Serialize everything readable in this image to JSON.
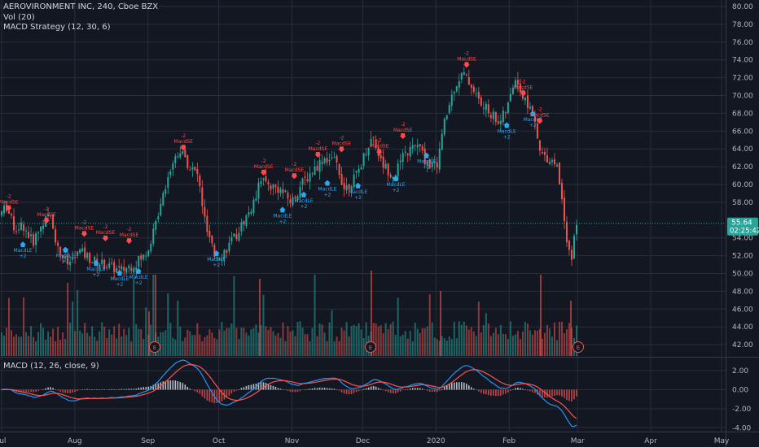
{
  "legend": {
    "title": "AEROVIRONMENT INC, 240, Cboe BZX",
    "vol": "Vol (20)",
    "strategy": "MACD Strategy (12, 30, 6)",
    "macd": "MACD (12, 26, close, 9)"
  },
  "price_axis": {
    "labels": [
      "80.00",
      "78.00",
      "76.00",
      "74.00",
      "72.00",
      "70.00",
      "68.00",
      "66.00",
      "64.00",
      "62.00",
      "60.00",
      "58.00",
      "54.00",
      "52.00",
      "50.00",
      "48.00",
      "46.00",
      "44.00",
      "42.00"
    ],
    "last_price": "55.64",
    "countdown": "02:25:42"
  },
  "macd_axis": {
    "labels": [
      "2.00",
      "0.00",
      "-2.00",
      "-4.00"
    ]
  },
  "time_axis": {
    "labels": [
      "Jul",
      "Aug",
      "Sep",
      "Oct",
      "Nov",
      "Dec",
      "2020",
      "Feb",
      "Mar",
      "Apr",
      "May"
    ]
  },
  "earnings": [
    {
      "label": "E"
    },
    {
      "label": "E"
    },
    {
      "label": "E"
    }
  ],
  "signals": [
    {
      "type": "short",
      "label": "MacdSE",
      "qty": "-2",
      "x": "2019-07-04",
      "y": 57.2
    },
    {
      "type": "long",
      "label": "MacdLE",
      "qty": "+2",
      "x": "2019-07-10",
      "y": 53.6
    },
    {
      "type": "short",
      "label": "MacdSE",
      "qty": "-2",
      "x": "2019-07-20",
      "y": 55.8
    },
    {
      "type": "long",
      "label": "MacdLE",
      "qty": "+2",
      "x": "2019-07-28",
      "y": 53.0
    },
    {
      "type": "short",
      "label": "MacdSE",
      "qty": "-2",
      "x": "2019-08-05",
      "y": 54.3
    },
    {
      "type": "long",
      "label": "MacdLE",
      "qty": "+2",
      "x": "2019-08-10",
      "y": 51.5
    },
    {
      "type": "short",
      "label": "MacdSE",
      "qty": "-2",
      "x": "2019-08-14",
      "y": 53.8
    },
    {
      "type": "long",
      "label": "MacdLE",
      "qty": "+2",
      "x": "2019-08-20",
      "y": 50.4
    },
    {
      "type": "short",
      "label": "MacdSE",
      "qty": "-2",
      "x": "2019-08-24",
      "y": 53.5
    },
    {
      "type": "long",
      "label": "MacdLE",
      "qty": "+2",
      "x": "2019-08-28",
      "y": 50.6
    },
    {
      "type": "short",
      "label": "MacdSE",
      "qty": "-2",
      "x": "2019-09-16",
      "y": 64.0
    },
    {
      "type": "long",
      "label": "MacdLE",
      "qty": "+2",
      "x": "2019-09-30",
      "y": 52.6
    },
    {
      "type": "short",
      "label": "MacdSE",
      "qty": "-2",
      "x": "2019-10-20",
      "y": 61.2
    },
    {
      "type": "long",
      "label": "MacdLE",
      "qty": "+2",
      "x": "2019-10-28",
      "y": 57.5
    },
    {
      "type": "short",
      "label": "MacdSE",
      "qty": "-2",
      "x": "2019-11-02",
      "y": 60.8
    },
    {
      "type": "long",
      "label": "MacdLE",
      "qty": "+2",
      "x": "2019-11-06",
      "y": 59.2
    },
    {
      "type": "short",
      "label": "MacdSE",
      "qty": "-2",
      "x": "2019-11-12",
      "y": 63.2
    },
    {
      "type": "long",
      "label": "MacdLE",
      "qty": "+2",
      "x": "2019-11-16",
      "y": 60.5
    },
    {
      "type": "short",
      "label": "MacdSE",
      "qty": "-2",
      "x": "2019-11-22",
      "y": 63.8
    },
    {
      "type": "long",
      "label": "MacdLE",
      "qty": "+2",
      "x": "2019-11-29",
      "y": 60.2
    },
    {
      "type": "short",
      "label": "MacdSE",
      "qty": "-2",
      "x": "2019-12-08",
      "y": 63.5
    },
    {
      "type": "long",
      "label": "MacdLE",
      "qty": "+2",
      "x": "2019-12-15",
      "y": 61.0
    },
    {
      "type": "short",
      "label": "MacdSE",
      "qty": "-2",
      "x": "2019-12-18",
      "y": 65.3
    },
    {
      "type": "long",
      "label": "MacdLE",
      "qty": "+2",
      "x": "2019-12-28",
      "y": 63.6
    },
    {
      "type": "short",
      "label": "MacdSE",
      "qty": "-2",
      "x": "2020-01-14",
      "y": 73.3
    },
    {
      "type": "long",
      "label": "MacdLE",
      "qty": "+2",
      "x": "2020-01-31",
      "y": 67.0
    },
    {
      "type": "short",
      "label": "MacdSE",
      "qty": "-2",
      "x": "2020-02-07",
      "y": 70.1
    },
    {
      "type": "long",
      "label": "MacdLE",
      "qty": "+2",
      "x": "2020-02-11",
      "y": 68.3
    },
    {
      "type": "short",
      "label": "MacdSE",
      "qty": "-2",
      "x": "2020-02-14",
      "y": 67.0
    }
  ],
  "colors": {
    "background": "#131722",
    "grid": "#2a2e39",
    "up": "#26a69a",
    "down": "#ef5350",
    "macd_line": "#2196f3",
    "signal_line": "#ff5252",
    "short_signal": "#ff4b4b",
    "long_signal": "#2ea8f5"
  }
}
